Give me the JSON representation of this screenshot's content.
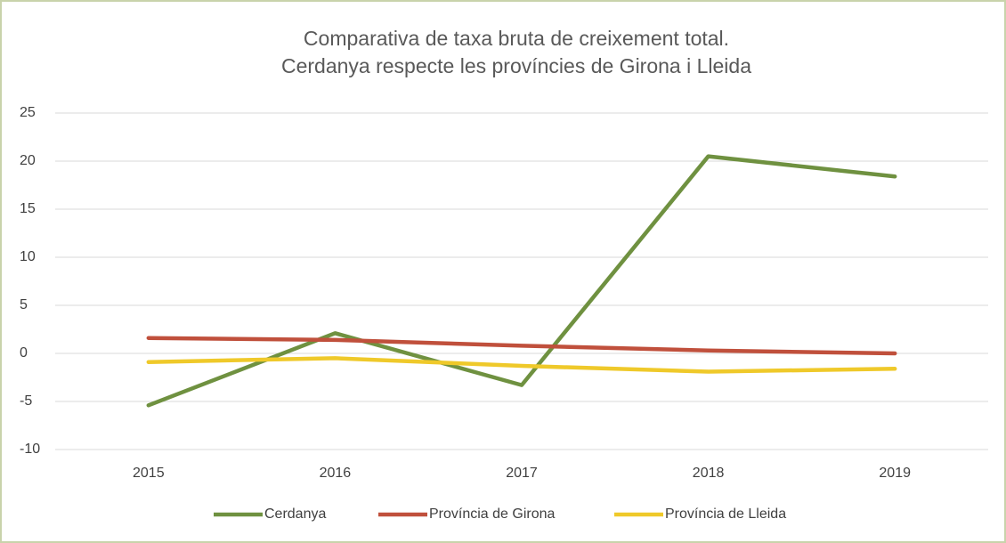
{
  "chart_data": {
    "type": "line",
    "title": [
      "Comparativa de taxa bruta de creixement total.",
      "Cerdanya respecte les províncies de Girona i Lleida"
    ],
    "categories": [
      "2015",
      "2016",
      "2017",
      "2018",
      "2019"
    ],
    "series": [
      {
        "name": "Cerdanya",
        "color": "#6f9140",
        "values": [
          -5.4,
          2.1,
          -3.3,
          20.5,
          18.4
        ]
      },
      {
        "name": "Província de Girona",
        "color": "#c0503c",
        "values": [
          1.6,
          1.4,
          0.8,
          0.3,
          0.0
        ]
      },
      {
        "name": "Província de Lleida",
        "color": "#efc92a",
        "values": [
          -0.9,
          -0.5,
          -1.3,
          -1.9,
          -1.6
        ]
      }
    ],
    "ylim": [
      -10,
      25
    ],
    "yticks": [
      -10,
      -5,
      0,
      5,
      10,
      15,
      20,
      25
    ],
    "grid": true,
    "legend": "bottom"
  }
}
